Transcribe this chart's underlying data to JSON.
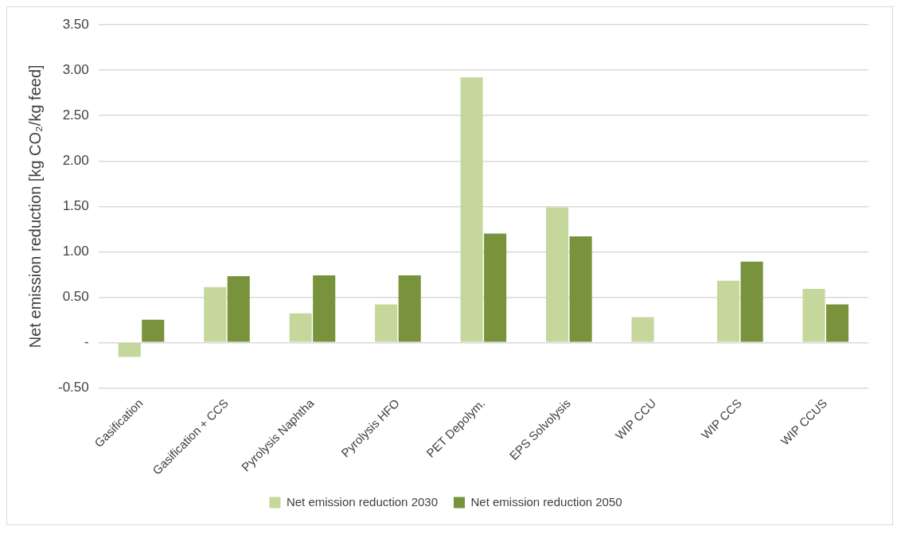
{
  "chart_data": {
    "type": "bar",
    "ylabel": "Net emission reduction [kg CO₂/kg feed]",
    "categories": [
      "Gasification",
      "Gasification + CCS",
      "Pyrolysis Naphtha",
      "Pyrolysis HFO",
      "PET Depolym.",
      "EPS Solvolysis",
      "WIP CCU",
      "WIP CCS",
      "WIP CCUS"
    ],
    "series": [
      {
        "name": "Net emission reduction 2030",
        "color": "#c5d79b",
        "values": [
          -0.16,
          0.61,
          0.32,
          0.42,
          2.92,
          1.49,
          0.28,
          0.68,
          0.59
        ]
      },
      {
        "name": "Net emission reduction 2050",
        "color": "#78933c",
        "values": [
          0.25,
          0.73,
          0.74,
          0.74,
          1.2,
          1.17,
          null,
          0.89,
          0.42
        ]
      }
    ],
    "ylim": [
      -0.5,
      3.5
    ],
    "yticks": [
      {
        "value": -0.5,
        "label": "-0.50"
      },
      {
        "value": 0,
        "label": "-"
      },
      {
        "value": 0.5,
        "label": "0.50"
      },
      {
        "value": 1,
        "label": "1.00"
      },
      {
        "value": 1.5,
        "label": "1.50"
      },
      {
        "value": 2,
        "label": "2.00"
      },
      {
        "value": 2.5,
        "label": "2.50"
      },
      {
        "value": 3,
        "label": "3.00"
      },
      {
        "value": 3.5,
        "label": "3.50"
      }
    ],
    "grid": "y",
    "legend": "bottom"
  }
}
